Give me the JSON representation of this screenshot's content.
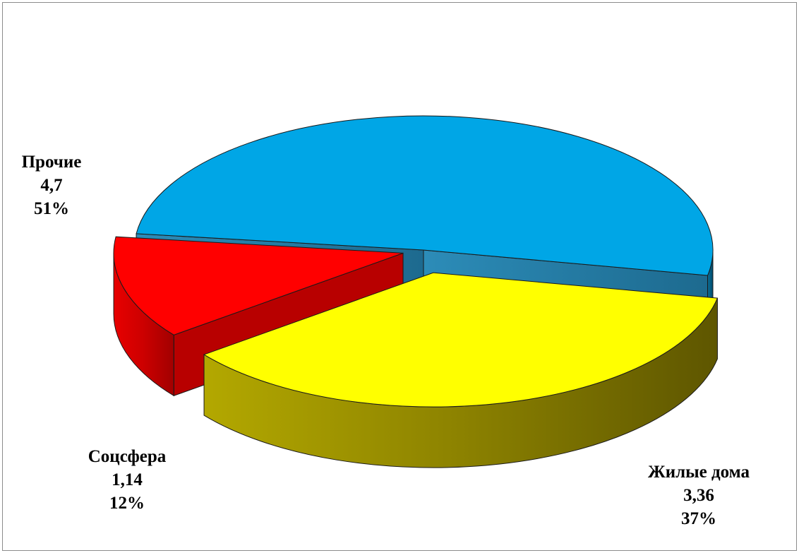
{
  "chart_data": {
    "type": "pie",
    "style": "3d-exploded",
    "slices": [
      {
        "name": "Прочие",
        "value_text": "4,7",
        "value": 4.7,
        "percent_text": "51%",
        "percent": 51,
        "color": "#00a6e6"
      },
      {
        "name": "Жилые дома",
        "value_text": "3,36",
        "value": 3.36,
        "percent_text": "37%",
        "percent": 37,
        "color": "#ffff00"
      },
      {
        "name": "Соцсфера",
        "value_text": "1,14",
        "value": 1.14,
        "percent_text": "12%",
        "percent": 12,
        "color": "#ff0000"
      }
    ]
  }
}
